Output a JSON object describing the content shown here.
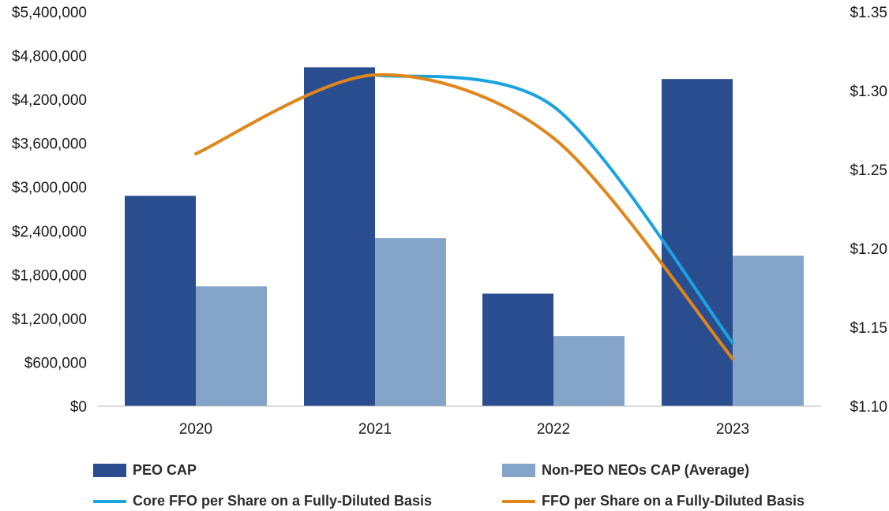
{
  "chart_data": {
    "type": "bar",
    "categories": [
      "2020",
      "2021",
      "2022",
      "2023"
    ],
    "series": [
      {
        "name": "PEO CAP",
        "kind": "bar",
        "axis": "left",
        "color": "#2a4d8f",
        "values": [
          2880000,
          4640000,
          1540000,
          4480000
        ]
      },
      {
        "name": "Non-PEO NEOs CAP (Average)",
        "kind": "bar",
        "axis": "left",
        "color": "#84a5c9",
        "values": [
          1640000,
          2300000,
          960000,
          2060000
        ]
      },
      {
        "name": "Core FFO per Share on a Fully-Diluted Basis",
        "kind": "line",
        "axis": "right",
        "color": "#1aa3e0",
        "values": [
          null,
          1.31,
          1.29,
          1.14
        ]
      },
      {
        "name": "FFO per Share on a Fully-Diluted Basis",
        "kind": "line",
        "axis": "right",
        "color": "#e0861a",
        "values": [
          1.26,
          1.31,
          1.27,
          1.13
        ]
      }
    ],
    "left_axis": {
      "range": [
        0,
        5400000
      ],
      "ticks": [
        0,
        600000,
        1200000,
        1800000,
        2400000,
        3000000,
        3600000,
        4200000,
        4800000,
        5400000
      ],
      "tick_labels": [
        "$0",
        "$600,000",
        "$1,200,000",
        "$1,800,000",
        "$2,400,000",
        "$3,000,000",
        "$3,600,000",
        "$4,200,000",
        "$4,800,000",
        "$5,400,000"
      ]
    },
    "right_axis": {
      "range": [
        1.1,
        1.35
      ],
      "ticks": [
        1.1,
        1.15,
        1.2,
        1.25,
        1.3,
        1.35
      ],
      "tick_labels": [
        "$1.10",
        "$1.15",
        "$1.20",
        "$1.25",
        "$1.30",
        "$1.35"
      ]
    },
    "grid": false,
    "legend_position": "bottom"
  }
}
